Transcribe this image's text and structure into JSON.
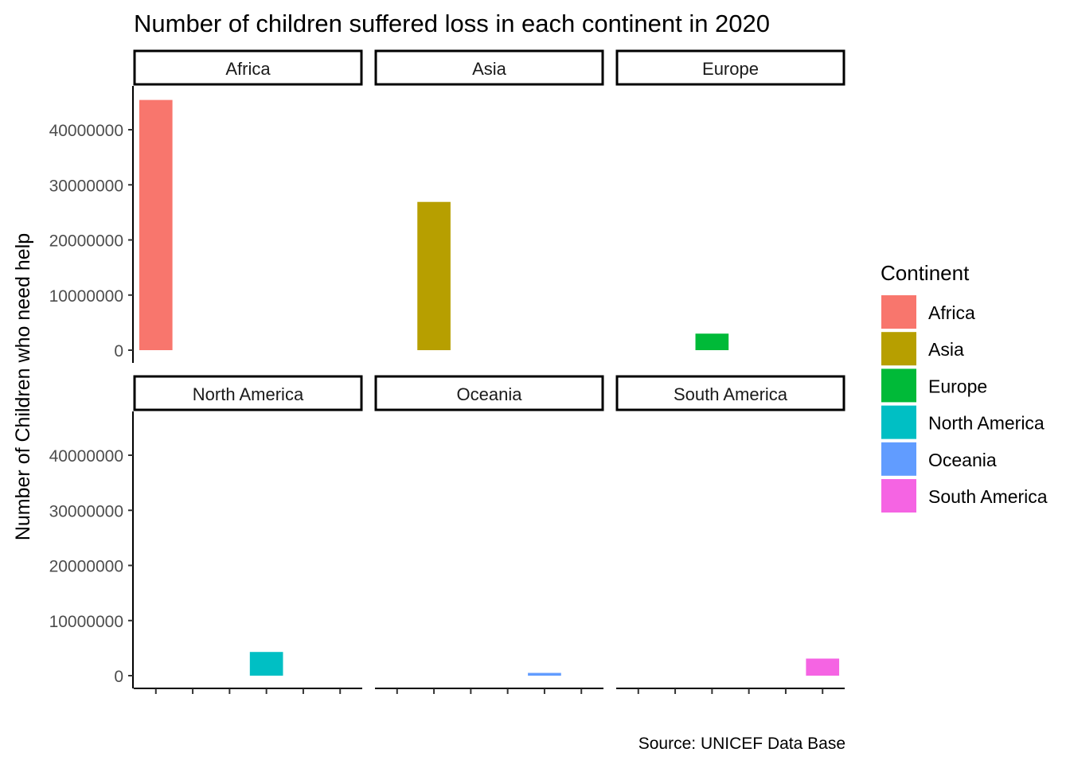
{
  "chart_data": {
    "type": "bar",
    "title": "Number of children suffered loss in each continent in 2020",
    "xlabel": "",
    "ylabel": "Number of Children who need help",
    "caption": "Source: UNICEF Data Base",
    "ylim": [
      0,
      45000000
    ],
    "yticks": [
      0,
      10000000,
      20000000,
      30000000,
      40000000
    ],
    "ytick_labels": [
      "0",
      "10000000",
      "20000000",
      "30000000",
      "40000000"
    ],
    "facets": [
      {
        "name": "Africa",
        "value": 45400000,
        "color": "#F8766D"
      },
      {
        "name": "Asia",
        "value": 26900000,
        "color": "#B79F00"
      },
      {
        "name": "Europe",
        "value": 3000000,
        "color": "#00BA38"
      },
      {
        "name": "North America",
        "value": 4300000,
        "color": "#00BFC4"
      },
      {
        "name": "Oceania",
        "value": 500000,
        "color": "#619CFF"
      },
      {
        "name": "South America",
        "value": 3100000,
        "color": "#F564E3"
      }
    ],
    "legend": {
      "title": "Continent",
      "position": "right",
      "entries": [
        "Africa",
        "Asia",
        "Europe",
        "North America",
        "Oceania",
        "South America"
      ]
    },
    "grid": false
  }
}
